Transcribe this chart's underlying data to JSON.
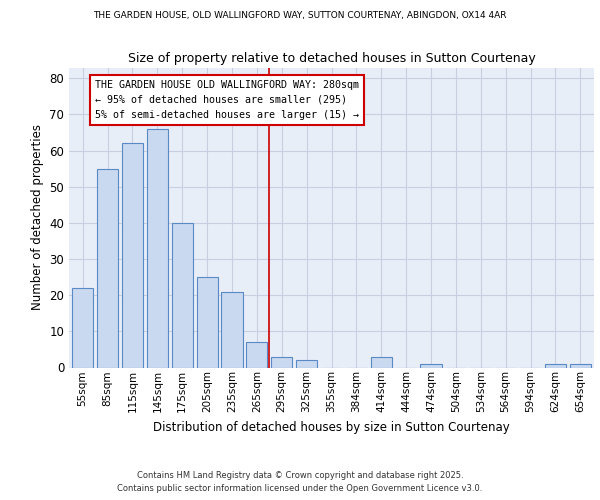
{
  "title_top": "THE GARDEN HOUSE, OLD WALLINGFORD WAY, SUTTON COURTENAY, ABINGDON, OX14 4AR",
  "title": "Size of property relative to detached houses in Sutton Courtenay",
  "xlabel": "Distribution of detached houses by size in Sutton Courtenay",
  "ylabel": "Number of detached properties",
  "bar_labels": [
    "55sqm",
    "85sqm",
    "115sqm",
    "145sqm",
    "175sqm",
    "205sqm",
    "235sqm",
    "265sqm",
    "295sqm",
    "325sqm",
    "355sqm",
    "384sqm",
    "414sqm",
    "444sqm",
    "474sqm",
    "504sqm",
    "534sqm",
    "564sqm",
    "594sqm",
    "624sqm",
    "654sqm"
  ],
  "bar_values": [
    22,
    55,
    62,
    66,
    40,
    25,
    21,
    7,
    3,
    2,
    0,
    0,
    3,
    0,
    1,
    0,
    0,
    0,
    0,
    1,
    1
  ],
  "bar_color": "#c9d9f0",
  "bar_edge_color": "#5a8ac6",
  "vline_x": 7.5,
  "vline_color": "#cc0000",
  "annotation_title": "THE GARDEN HOUSE OLD WALLINGFORD WAY: 280sqm",
  "annotation_line1": "← 95% of detached houses are smaller (295)",
  "annotation_line2": "5% of semi-detached houses are larger (15) →",
  "ylim": [
    0,
    83
  ],
  "yticks": [
    0,
    10,
    20,
    30,
    40,
    50,
    60,
    70,
    80
  ],
  "grid_color": "#c8cfe0",
  "background_color": "#e8eef8",
  "footer1": "Contains HM Land Registry data © Crown copyright and database right 2025.",
  "footer2": "Contains public sector information licensed under the Open Government Licence v3.0."
}
